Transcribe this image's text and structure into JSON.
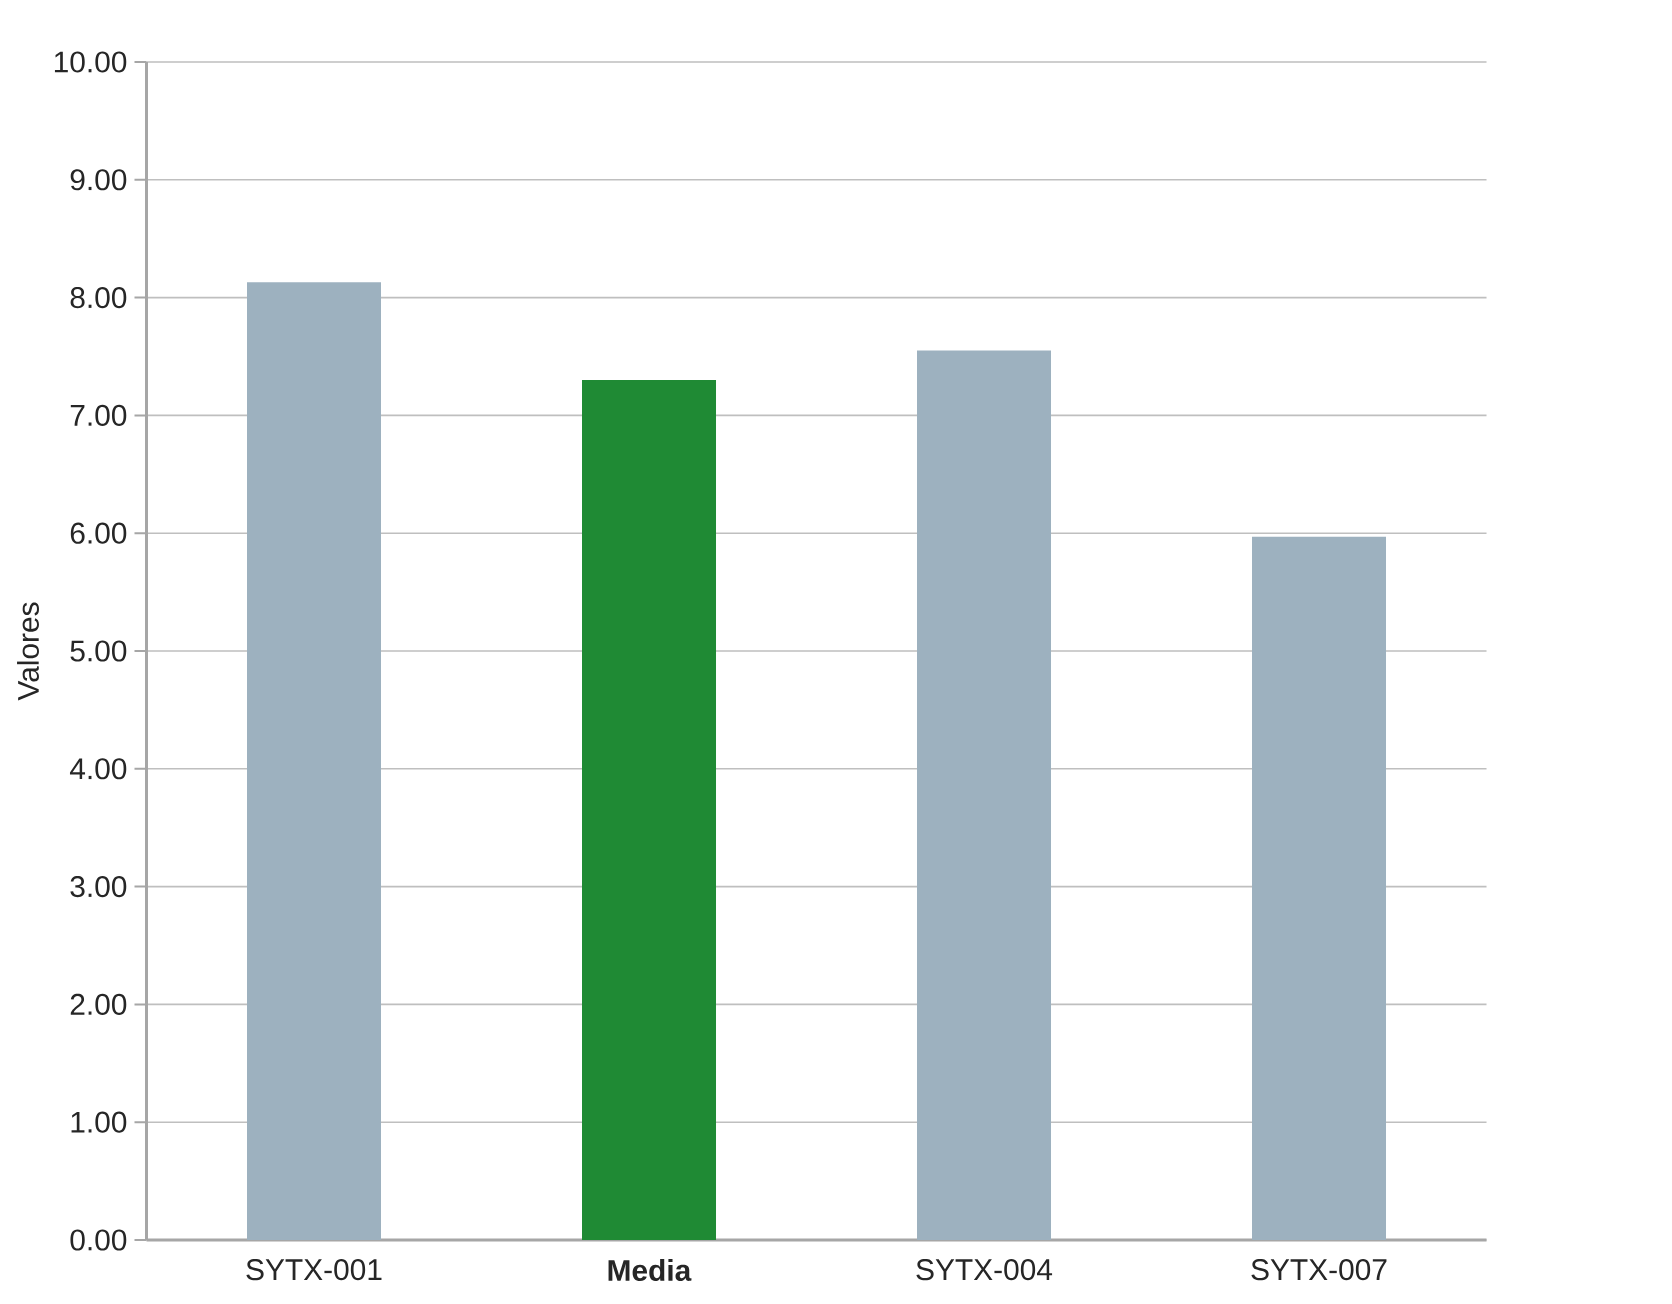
{
  "chart_data": {
    "type": "bar",
    "ylabel": "Valores",
    "categories": [
      "SYTX-001",
      "**Media**",
      "SYTX-004",
      "SYTX-007"
    ],
    "values": [
      8.13,
      7.3,
      7.55,
      5.97
    ],
    "colors": [
      "#9db1bf",
      "#1f8a34",
      "#9db1bf",
      "#9db1bf"
    ],
    "ylim": [
      0,
      10
    ],
    "yticks": [
      {
        "value": 0,
        "label": "0.00"
      },
      {
        "value": 1,
        "label": "1.00"
      },
      {
        "value": 2,
        "label": "2.00"
      },
      {
        "value": 3,
        "label": "3.00"
      },
      {
        "value": 4,
        "label": "4.00"
      },
      {
        "value": 5,
        "label": "5.00"
      },
      {
        "value": 6,
        "label": "6.00"
      },
      {
        "value": 7,
        "label": "7.00"
      },
      {
        "value": 8,
        "label": "8.00"
      },
      {
        "value": 9,
        "label": "9.00"
      },
      {
        "value": 10,
        "label": "10.00"
      }
    ],
    "grid": "y"
  }
}
